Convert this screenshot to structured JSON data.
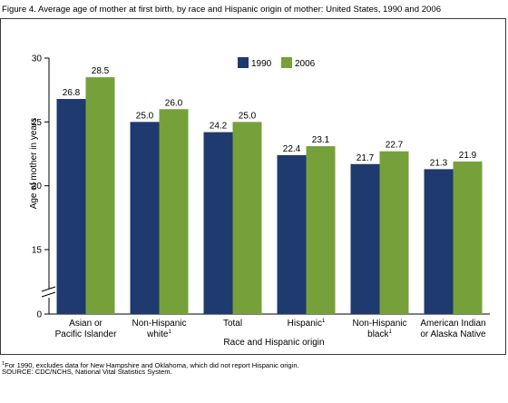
{
  "figure_title": "Figure 4. Average age of mother at first birth, by race and Hispanic origin of mother: United States, 1990 and 2006",
  "footnote_marker": "1",
  "footnote_text": "For 1990, excludes data for New Hampshire and Oklahoma, which did not report Hispanic origin.",
  "source": "SOURCE: CDC/NCHS, National Vital Statistics System.",
  "colors": {
    "series_1990": "#1f3a6e",
    "series_2006": "#76a13a",
    "axis": "#000000",
    "frame": "#3a3a3a"
  },
  "chart_data": {
    "type": "bar",
    "title": "",
    "xlabel": "Race and Hispanic origin",
    "ylabel": "Age of mother in years",
    "ylim": [
      0,
      30
    ],
    "axis_break": true,
    "yticks": [
      0,
      15,
      20,
      25,
      30
    ],
    "categories": [
      {
        "lines": [
          "Asian or",
          "Pacific Islander"
        ],
        "footnote": ""
      },
      {
        "lines": [
          "Non-Hispanic",
          "white"
        ],
        "footnote": "1"
      },
      {
        "lines": [
          "Total"
        ],
        "footnote": ""
      },
      {
        "lines": [
          "Hispanic"
        ],
        "footnote": "1"
      },
      {
        "lines": [
          "Non-Hispanic",
          "black"
        ],
        "footnote": "1"
      },
      {
        "lines": [
          "American Indian",
          "or Alaska Native"
        ],
        "footnote": ""
      }
    ],
    "series": [
      {
        "name": "1990",
        "values": [
          26.8,
          25.0,
          24.2,
          22.4,
          21.7,
          21.3
        ],
        "labels": [
          "26.8",
          "25.0",
          "24.2",
          "22.4",
          "21.7",
          "21.3"
        ]
      },
      {
        "name": "2006",
        "values": [
          28.5,
          26.0,
          25.0,
          23.1,
          22.7,
          21.9
        ],
        "labels": [
          "28.5",
          "26.0",
          "25.0",
          "23.1",
          "22.7",
          "21.9"
        ]
      }
    ],
    "legend": "top-right",
    "grid": false
  }
}
